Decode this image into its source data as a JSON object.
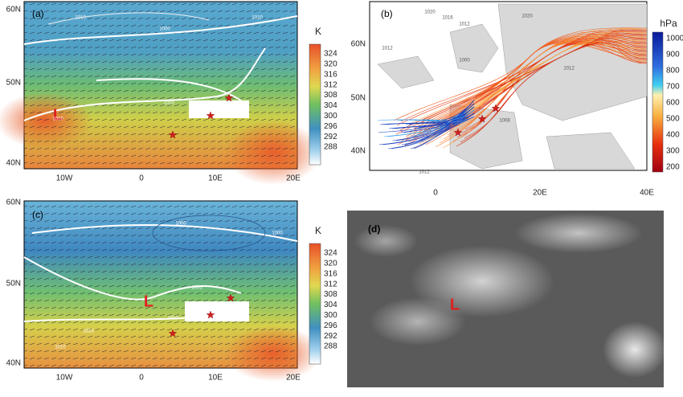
{
  "figure": {
    "lat_ticks": [
      "60N",
      "50N",
      "40N"
    ],
    "lon_ticks": [
      "10W",
      "0",
      "10E",
      "20E"
    ],
    "panel_a": {
      "label": "(a)",
      "low": "L",
      "colorbar": {
        "title": "K",
        "labels": [
          "324",
          "320",
          "316",
          "312",
          "308",
          "304",
          "300",
          "296",
          "292",
          "288"
        ]
      },
      "contour_labels": [
        "1010",
        "1000",
        "1010",
        "1010",
        "1010"
      ]
    },
    "panel_b": {
      "label": "(b)",
      "lat_ticks": [
        "60N",
        "50N",
        "40N"
      ],
      "lon_ticks": [
        "0",
        "20E",
        "40E"
      ],
      "colorbar": {
        "title": "hPa",
        "labels": [
          "1000",
          "900",
          "800",
          "700",
          "600",
          "500",
          "400",
          "300",
          "200"
        ]
      },
      "contour_labels": [
        "1020",
        "1016",
        "1012",
        "1020",
        "1012",
        "1000",
        "1012",
        "1008",
        "1012"
      ]
    },
    "panel_c": {
      "label": "(c)",
      "low": "L",
      "colorbar": {
        "title": "K",
        "labels": [
          "324",
          "320",
          "316",
          "312",
          "308",
          "304",
          "300",
          "296",
          "292",
          "288"
        ]
      },
      "contour_labels": [
        "1000",
        "1000",
        "1005",
        "1010",
        "1010",
        "1010"
      ]
    },
    "panel_d": {
      "label": "(d)",
      "low": "L"
    }
  }
}
